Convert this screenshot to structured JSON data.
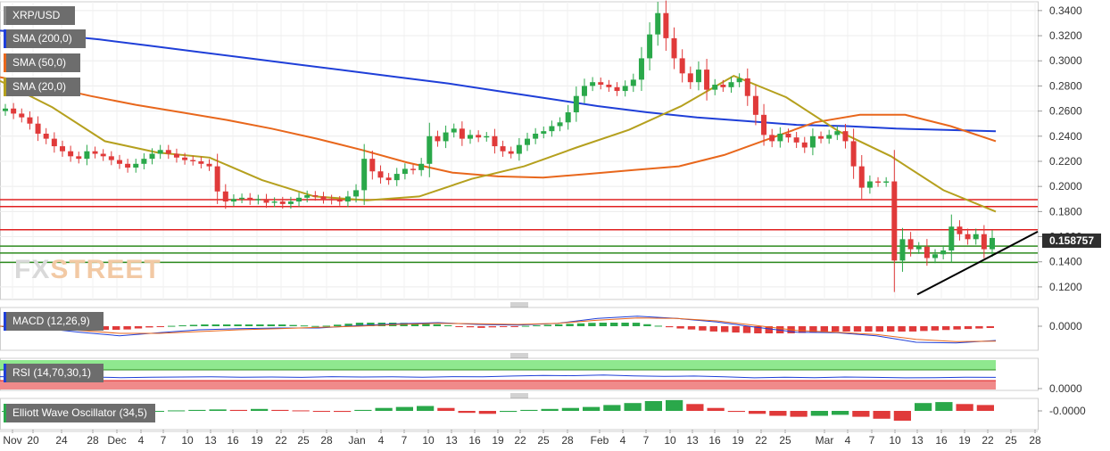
{
  "header": {
    "symbol": "XRP/USD",
    "sma200": "SMA (200,0)",
    "sma50": "SMA (50,0)",
    "sma20": "SMA (20,0)"
  },
  "logo": {
    "part1": "FX",
    "part2": "STREET"
  },
  "indicators": {
    "macd": "MACD (12,26,9)",
    "rsi": "RSI (14,70,30,1)",
    "ewo": "Elliott Wave Oscillator (34,5)"
  },
  "colors": {
    "sma200": "#1f3fd8",
    "sma50": "#e8671c",
    "sma20": "#b5a01e",
    "up": "#2aa84a",
    "down": "#e03a3a",
    "support": "#2e8b1f",
    "resistance": "#e02020"
  },
  "chart_data": [
    {
      "type": "candlestick",
      "title": "XRP/USD",
      "ylim": [
        0.11,
        0.347
      ],
      "yticks": [
        "0.1200",
        "0.1400",
        "0.1600",
        "0.1800",
        "0.2000",
        "0.2200",
        "0.2400",
        "0.2600",
        "0.2800",
        "0.3000",
        "0.3200",
        "0.3400"
      ],
      "last_price": "0.158757",
      "xticks": [
        "Nov",
        "20",
        "24",
        "28",
        "Dec",
        "4",
        "7",
        "10",
        "13",
        "16",
        "19",
        "22",
        "25",
        "28",
        "Jan",
        "4",
        "7",
        "10",
        "13",
        "16",
        "19",
        "22",
        "25",
        "28",
        "Feb",
        "4",
        "7",
        "10",
        "13",
        "16",
        "19",
        "22",
        "25",
        "Mar",
        "4",
        "7",
        "10",
        "13",
        "16",
        "19",
        "22",
        "25",
        "28"
      ],
      "closes": [
        0.262,
        0.258,
        0.255,
        0.25,
        0.242,
        0.238,
        0.232,
        0.228,
        0.224,
        0.222,
        0.228,
        0.226,
        0.224,
        0.221,
        0.218,
        0.215,
        0.218,
        0.222,
        0.226,
        0.229,
        0.226,
        0.223,
        0.221,
        0.22,
        0.218,
        0.216,
        0.196,
        0.188,
        0.19,
        0.191,
        0.189,
        0.19,
        0.187,
        0.188,
        0.186,
        0.188,
        0.191,
        0.193,
        0.192,
        0.19,
        0.189,
        0.188,
        0.192,
        0.197,
        0.222,
        0.212,
        0.207,
        0.205,
        0.21,
        0.214,
        0.213,
        0.218,
        0.24,
        0.236,
        0.243,
        0.246,
        0.238,
        0.241,
        0.239,
        0.24,
        0.232,
        0.228,
        0.226,
        0.233,
        0.238,
        0.242,
        0.244,
        0.248,
        0.251,
        0.259,
        0.272,
        0.28,
        0.283,
        0.281,
        0.279,
        0.276,
        0.28,
        0.285,
        0.302,
        0.321,
        0.338,
        0.318,
        0.302,
        0.29,
        0.283,
        0.293,
        0.277,
        0.281,
        0.279,
        0.283,
        0.286,
        0.272,
        0.257,
        0.241,
        0.236,
        0.242,
        0.239,
        0.235,
        0.231,
        0.24,
        0.238,
        0.241,
        0.244,
        0.236,
        0.216,
        0.199,
        0.204,
        0.203,
        0.204,
        0.141,
        0.158,
        0.15,
        0.152,
        0.143,
        0.146,
        0.149,
        0.168,
        0.162,
        0.158,
        0.162,
        0.15,
        0.159
      ],
      "series": [
        {
          "name": "SMA (200,0)",
          "values": [
            0.324,
            0.321,
            0.317,
            0.312,
            0.307,
            0.302,
            0.297,
            0.292,
            0.287,
            0.282,
            0.276,
            0.27,
            0.264,
            0.259,
            0.255,
            0.252,
            0.249,
            0.248,
            0.246,
            0.245,
            0.244
          ]
        },
        {
          "name": "SMA (50,0)",
          "values": [
            0.287,
            0.28,
            0.272,
            0.265,
            0.259,
            0.253,
            0.246,
            0.238,
            0.229,
            0.219,
            0.211,
            0.208,
            0.207,
            0.21,
            0.213,
            0.216,
            0.225,
            0.238,
            0.251,
            0.257,
            0.257,
            0.248,
            0.236
          ]
        },
        {
          "name": "SMA (20,0)",
          "values": [
            0.284,
            0.263,
            0.236,
            0.227,
            0.223,
            0.205,
            0.192,
            0.189,
            0.192,
            0.206,
            0.216,
            0.231,
            0.245,
            0.264,
            0.288,
            0.271,
            0.244,
            0.224,
            0.197,
            0.18
          ]
        }
      ],
      "support_levels": [
        0.1525,
        0.147,
        0.1395
      ],
      "resistance_levels": [
        0.1895,
        0.184,
        0.1655
      ],
      "trendline": [
        0.114,
        0.164
      ]
    },
    {
      "type": "line",
      "title": "MACD (12,26,9)",
      "yticks": [
        "0.0000"
      ],
      "macd": [
        0.0,
        -0.003,
        -0.01,
        -0.016,
        -0.011,
        -0.006,
        -0.004,
        -0.003,
        -0.003,
        0.001,
        0.004,
        0.006,
        0.003,
        0.002,
        0.005,
        0.013,
        0.017,
        0.013,
        0.007,
        -0.002,
        -0.01,
        -0.011,
        -0.016,
        -0.027,
        -0.028,
        -0.024
      ],
      "signal": [
        0.0,
        -0.002,
        -0.007,
        -0.012,
        -0.012,
        -0.009,
        -0.006,
        -0.004,
        -0.002,
        0.0,
        0.003,
        0.005,
        0.004,
        0.003,
        0.005,
        0.01,
        0.014,
        0.013,
        0.009,
        0.001,
        -0.007,
        -0.01,
        -0.014,
        -0.022,
        -0.026,
        -0.025
      ],
      "histogram": [
        0.0,
        -0.001,
        -0.002,
        -0.002,
        0.0,
        0.001,
        0.001,
        0.001,
        0.0,
        0.002,
        0.002,
        0.001,
        -0.001,
        0.0,
        0.001,
        0.002,
        0.002,
        -0.001,
        -0.003,
        -0.004,
        -0.004,
        -0.003,
        -0.003,
        -0.003,
        -0.002,
        -0.001
      ]
    },
    {
      "type": "line",
      "title": "RSI (14,70,30,1)",
      "yticks": [
        "0.0000"
      ],
      "overbought": 70,
      "oversold": 30,
      "rsi": [
        52,
        50,
        49,
        50,
        47,
        49,
        50,
        51,
        49,
        50,
        48,
        52,
        50,
        51,
        49,
        52,
        51,
        55,
        58,
        57,
        60,
        56,
        53,
        55,
        51,
        46,
        49,
        47,
        50,
        48,
        46,
        47,
        49,
        48
      ]
    },
    {
      "type": "bar",
      "title": "Elliott Wave Oscillator (34,5)",
      "yticks": [
        "-0.0000"
      ],
      "values": [
        0,
        -0.1,
        -0.2,
        0.1,
        0.2,
        0.1,
        -0.1,
        0,
        0.05,
        0.1,
        0.15,
        0.1,
        0.2,
        0.1,
        0.05,
        -0.05,
        -0.1,
        0.1,
        0.3,
        0.4,
        0.5,
        0.3,
        -0.2,
        -0.3,
        -0.1,
        0.1,
        0.2,
        0.3,
        0.4,
        0.6,
        0.8,
        1.0,
        1.1,
        0.7,
        0.3,
        -0.1,
        -0.3,
        -0.5,
        -0.6,
        -0.5,
        -0.4,
        -0.6,
        -0.8,
        -1.0,
        0.8,
        0.9,
        0.7,
        0.6
      ]
    }
  ]
}
